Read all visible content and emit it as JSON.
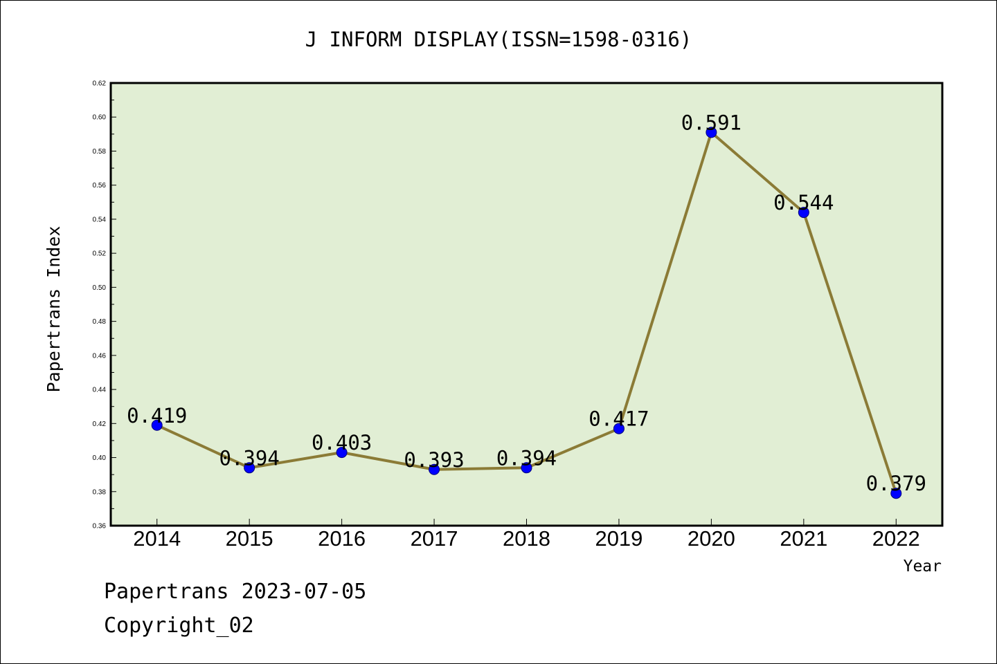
{
  "chart_data": {
    "type": "line",
    "title": "J INFORM DISPLAY(ISSN=1598-0316)",
    "xlabel": "Year",
    "ylabel": "Papertrans Index",
    "categories": [
      "2014",
      "2015",
      "2016",
      "2017",
      "2018",
      "2019",
      "2020",
      "2021",
      "2022"
    ],
    "series": [
      {
        "values": [
          0.419,
          0.394,
          0.403,
          0.393,
          0.394,
          0.417,
          0.591,
          0.544,
          0.379
        ]
      }
    ],
    "data_labels": true,
    "ylim": [
      0.36,
      0.62
    ],
    "yticks": [
      "0.36",
      "0.38",
      "0.40",
      "0.42",
      "0.44",
      "0.46",
      "0.48",
      "0.50",
      "0.52",
      "0.54",
      "0.56",
      "0.58",
      "0.60",
      "0.62"
    ],
    "grid": false,
    "legend": "none",
    "colors": {
      "plot_bg": "#e1eed4",
      "line": "#8b7b36",
      "marker": "#0000ff",
      "marker_edge": "#00007a"
    }
  },
  "footer": {
    "date_line": "Papertrans 2023-07-05",
    "copyright_line": "Copyright_02"
  }
}
